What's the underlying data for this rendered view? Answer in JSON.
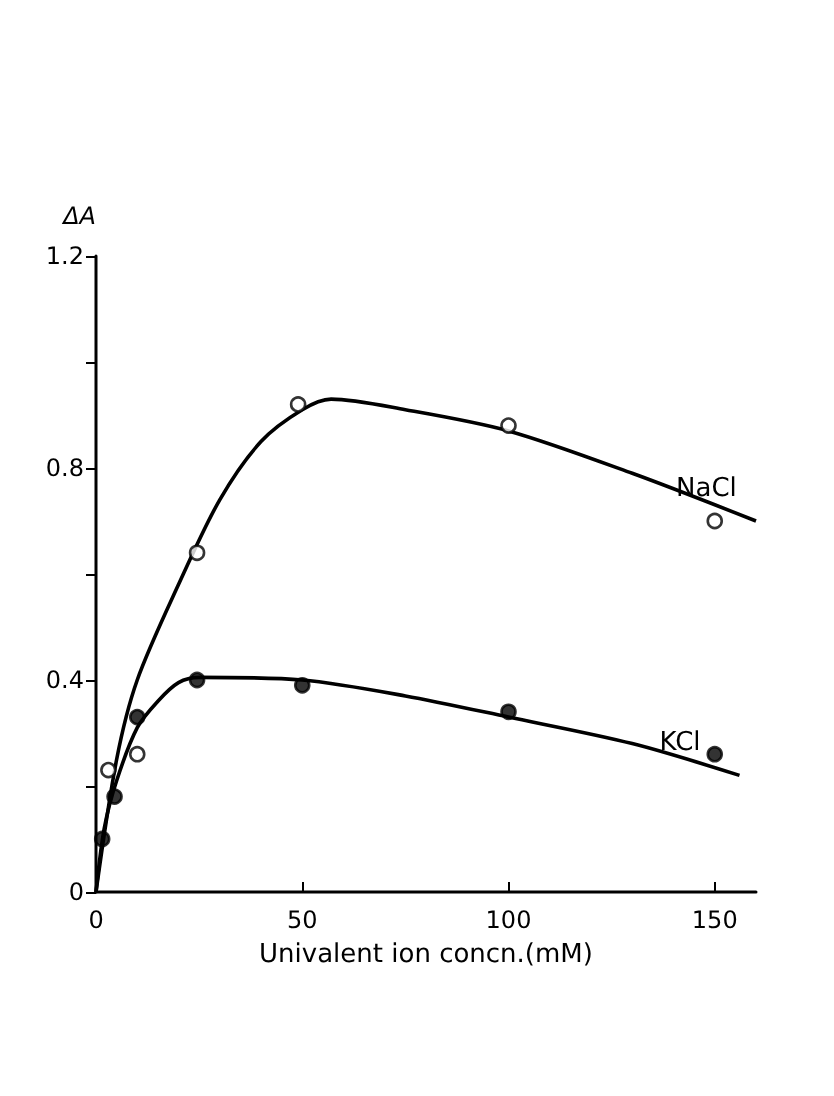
{
  "chart_data": {
    "type": "scatter",
    "xlabel": "Univalent ion concn.(mM)",
    "ylabel": "ΔA",
    "xlim": [
      0,
      160
    ],
    "xticks": [
      0,
      50,
      100,
      150
    ],
    "ylim": [
      0,
      1.2
    ],
    "yticks": [
      0,
      {
        "value": 0.2,
        "label": null
      },
      0.4,
      {
        "value": 0.6,
        "label": null
      },
      0.8,
      {
        "value": 1.0,
        "label": null
      },
      1.2
    ],
    "grid": false,
    "legend": false,
    "marker": "circle",
    "series": [
      {
        "color": "#ffffff",
        "x": [
          3,
          10,
          24.5,
          49,
          100,
          150
        ],
        "values": [
          0.23,
          0.26,
          0.64,
          0.92,
          0.88,
          0.7
        ]
      },
      {
        "color": "#000000",
        "x": [
          1.5,
          4.5,
          10,
          24.5,
          50,
          100,
          150
        ],
        "values": [
          0.1,
          0.18,
          0.33,
          0.4,
          0.39,
          0.34,
          0.26
        ]
      },
      {
        "type": "line",
        "name": "NaCl",
        "color": "#000000",
        "marker": "none",
        "line_style": "solid",
        "x": [
          0,
          5,
          10,
          20,
          30,
          40,
          50,
          57,
          75,
          100,
          130,
          160
        ],
        "values": [
          0,
          0.25,
          0.4,
          0.58,
          0.74,
          0.85,
          0.91,
          0.93,
          0.91,
          0.87,
          0.79,
          0.7
        ]
      },
      {
        "type": "line",
        "name": "KCl",
        "color": "#000000",
        "marker": "none",
        "line_style": "solid",
        "x": [
          0,
          2,
          5,
          10,
          15,
          20,
          25,
          50,
          75,
          100,
          130,
          156
        ],
        "values": [
          0,
          0.12,
          0.21,
          0.31,
          0.36,
          0.395,
          0.405,
          0.4,
          0.37,
          0.33,
          0.28,
          0.22
        ]
      }
    ]
  }
}
